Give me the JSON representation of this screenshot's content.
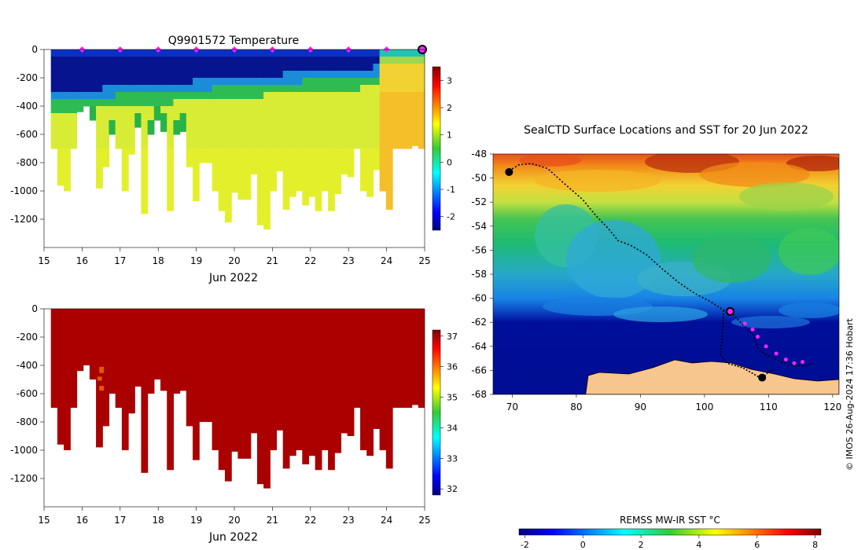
{
  "chart_data": [
    {
      "type": "heatmap",
      "id": "temperature",
      "title": "Q9901572  Temperature",
      "xlabel": "Jun 2022",
      "xticks": [
        "15",
        "16",
        "17",
        "18",
        "19",
        "20",
        "21",
        "22",
        "23",
        "24",
        "25"
      ],
      "xlim": [
        15,
        25
      ],
      "ylim": [
        0,
        -1400
      ],
      "yticks": [
        "0",
        "-200",
        "-400",
        "-600",
        "-800",
        "-1000",
        "-1200"
      ],
      "colorbar": {
        "range": [
          -2.5,
          3.5
        ],
        "ticks": [
          "3",
          "2",
          "1",
          "0",
          "-1",
          "-2"
        ]
      },
      "surface_markers_day": [
        16,
        17,
        18,
        19,
        20,
        21,
        22,
        23,
        24
      ],
      "current_profile_day": 25,
      "profile_max_depth": [
        700,
        960,
        1000,
        700,
        440,
        400,
        500,
        980,
        830,
        600,
        700,
        1000,
        740,
        550,
        1160,
        600,
        500,
        580,
        1140,
        600,
        580,
        830,
        1070,
        800,
        800,
        1000,
        1140,
        1220,
        1010,
        1060,
        1060,
        880,
        1240,
        1270,
        1000,
        860,
        1130,
        1040,
        1000,
        1100,
        1040,
        1140,
        1000,
        1140,
        1020,
        880,
        900,
        700,
        1000,
        1040,
        850,
        1000,
        1130,
        700,
        700,
        700,
        680,
        700
      ],
      "value_scale": "Temperature °C"
    },
    {
      "type": "heatmap",
      "id": "salinity",
      "title": "",
      "xlabel": "Jun 2022",
      "xticks": [
        "15",
        "16",
        "17",
        "18",
        "19",
        "20",
        "21",
        "22",
        "23",
        "24",
        "25"
      ],
      "xlim": [
        15,
        25
      ],
      "ylim": [
        0,
        -1400
      ],
      "yticks": [
        "0",
        "-200",
        "-400",
        "-600",
        "-800",
        "-1000",
        "-1200"
      ],
      "colorbar": {
        "range": [
          31.8,
          37.2
        ],
        "ticks": [
          "37",
          "36",
          "35",
          "34",
          "33",
          "32"
        ]
      },
      "value_scale": "Salinity"
    },
    {
      "type": "heatmap",
      "id": "sst-map",
      "title": "SealCTD Surface Locations and SST for 20 Jun 2022",
      "xticks": [
        "70",
        "80",
        "90",
        "100",
        "110",
        "120"
      ],
      "yticks": [
        "-48",
        "-50",
        "-52",
        "-54",
        "-56",
        "-58",
        "-60",
        "-62",
        "-64",
        "-66",
        "-68"
      ],
      "xlim": [
        67,
        121
      ],
      "ylim": [
        -48,
        -68
      ],
      "colorbar": {
        "label": "REMSS MW-IR SST °C",
        "range": [
          -2.2,
          8.2
        ],
        "ticks": [
          "-2",
          "0",
          "2",
          "4",
          "6",
          "8"
        ]
      },
      "track": [
        [
          69.5,
          -49.4
        ],
        [
          71,
          -48.9
        ],
        [
          73,
          -48.8
        ],
        [
          75.5,
          -49.2
        ],
        [
          78,
          -50.4
        ],
        [
          81,
          -51.8
        ],
        [
          83,
          -53.1
        ],
        [
          85,
          -54.2
        ],
        [
          86.5,
          -55.2
        ],
        [
          88.5,
          -55.6
        ],
        [
          91,
          -56.4
        ],
        [
          93.5,
          -57.6
        ],
        [
          96,
          -58.7
        ],
        [
          98.5,
          -59.6
        ],
        [
          101,
          -60.3
        ],
        [
          103,
          -61
        ],
        [
          104,
          -61.1
        ],
        [
          106,
          -62.2
        ],
        [
          107.5,
          -63
        ],
        [
          108.5,
          -64.3
        ],
        [
          110,
          -64.8
        ],
        [
          112,
          -65.3
        ],
        [
          114,
          -65.6
        ],
        [
          116,
          -65.6
        ],
        [
          117,
          -65.4
        ]
      ],
      "track_branch": [
        [
          103,
          -61
        ],
        [
          102.8,
          -63
        ],
        [
          102.5,
          -64.7
        ],
        [
          103.5,
          -65.4
        ],
        [
          106,
          -65.8
        ],
        [
          108,
          -66.4
        ],
        [
          109,
          -66.7
        ],
        [
          110,
          -66.1
        ],
        [
          111,
          -65.9
        ]
      ],
      "current_location": [
        104,
        -61.1
      ],
      "recent_locations": [
        [
          106.3,
          -62.1
        ],
        [
          107.5,
          -62.6
        ],
        [
          108.3,
          -63.2
        ],
        [
          109.6,
          -64.0
        ],
        [
          111.2,
          -64.6
        ],
        [
          112.7,
          -65.1
        ],
        [
          114,
          -65.4
        ],
        [
          115.3,
          -65.3
        ]
      ]
    }
  ],
  "credit": "© IMOS 26-Aug-2024 17:36 Hobart"
}
